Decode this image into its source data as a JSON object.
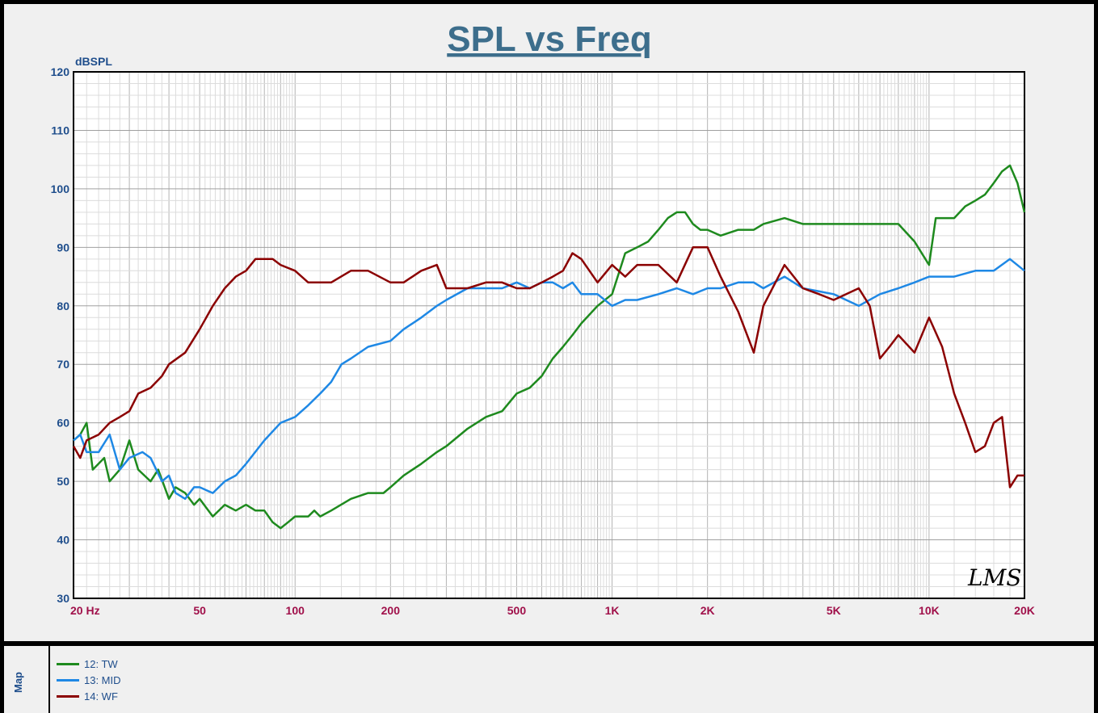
{
  "chart_data": {
    "type": "line",
    "title": "SPL vs Freq",
    "ylabel": "dBSPL",
    "xlabel": "",
    "x_scale": "log",
    "xlim": [
      20,
      20000
    ],
    "ylim": [
      30,
      120
    ],
    "y_ticks": [
      30,
      40,
      50,
      60,
      70,
      80,
      90,
      100,
      110,
      120
    ],
    "x_tick_labels": [
      {
        "f": 20,
        "label": "20  Hz"
      },
      {
        "f": 50,
        "label": "50"
      },
      {
        "f": 100,
        "label": "100"
      },
      {
        "f": 200,
        "label": "200"
      },
      {
        "f": 500,
        "label": "500"
      },
      {
        "f": 1000,
        "label": "1K"
      },
      {
        "f": 2000,
        "label": "2K"
      },
      {
        "f": 5000,
        "label": "5K"
      },
      {
        "f": 10000,
        "label": "10K"
      },
      {
        "f": 20000,
        "label": "20K"
      }
    ],
    "watermark": "LMS",
    "grid": true,
    "series": [
      {
        "name": "12: TW",
        "color": "#1e8a1e",
        "points": [
          [
            20,
            57
          ],
          [
            21,
            58
          ],
          [
            22,
            60
          ],
          [
            23,
            52
          ],
          [
            25,
            54
          ],
          [
            26,
            50
          ],
          [
            28,
            52
          ],
          [
            30,
            57
          ],
          [
            32,
            52
          ],
          [
            35,
            50
          ],
          [
            37,
            52
          ],
          [
            40,
            47
          ],
          [
            42,
            49
          ],
          [
            45,
            48
          ],
          [
            48,
            46
          ],
          [
            50,
            47
          ],
          [
            55,
            44
          ],
          [
            60,
            46
          ],
          [
            65,
            45
          ],
          [
            70,
            46
          ],
          [
            75,
            45
          ],
          [
            80,
            45
          ],
          [
            85,
            43
          ],
          [
            90,
            42
          ],
          [
            95,
            43
          ],
          [
            100,
            44
          ],
          [
            110,
            44
          ],
          [
            115,
            45
          ],
          [
            120,
            44
          ],
          [
            130,
            45
          ],
          [
            150,
            47
          ],
          [
            170,
            48
          ],
          [
            190,
            48
          ],
          [
            200,
            49
          ],
          [
            220,
            51
          ],
          [
            250,
            53
          ],
          [
            280,
            55
          ],
          [
            300,
            56
          ],
          [
            350,
            59
          ],
          [
            400,
            61
          ],
          [
            450,
            62
          ],
          [
            500,
            65
          ],
          [
            550,
            66
          ],
          [
            600,
            68
          ],
          [
            650,
            71
          ],
          [
            700,
            73
          ],
          [
            750,
            75
          ],
          [
            800,
            77
          ],
          [
            900,
            80
          ],
          [
            1000,
            82
          ],
          [
            1100,
            89
          ],
          [
            1200,
            90
          ],
          [
            1300,
            91
          ],
          [
            1400,
            93
          ],
          [
            1500,
            95
          ],
          [
            1600,
            96
          ],
          [
            1700,
            96
          ],
          [
            1800,
            94
          ],
          [
            1900,
            93
          ],
          [
            2000,
            93
          ],
          [
            2200,
            92
          ],
          [
            2500,
            93
          ],
          [
            2800,
            93
          ],
          [
            3000,
            94
          ],
          [
            3500,
            95
          ],
          [
            4000,
            94
          ],
          [
            4500,
            94
          ],
          [
            5000,
            94
          ],
          [
            6000,
            94
          ],
          [
            7000,
            94
          ],
          [
            8000,
            94
          ],
          [
            9000,
            91
          ],
          [
            10000,
            87
          ],
          [
            10500,
            95
          ],
          [
            12000,
            95
          ],
          [
            13000,
            97
          ],
          [
            14000,
            98
          ],
          [
            15000,
            99
          ],
          [
            16000,
            101
          ],
          [
            17000,
            103
          ],
          [
            18000,
            104
          ],
          [
            19000,
            101
          ],
          [
            20000,
            96
          ]
        ]
      },
      {
        "name": "13: MID",
        "color": "#1e88e5",
        "points": [
          [
            20,
            57
          ],
          [
            21,
            58
          ],
          [
            22,
            55
          ],
          [
            24,
            55
          ],
          [
            26,
            58
          ],
          [
            28,
            52
          ],
          [
            30,
            54
          ],
          [
            33,
            55
          ],
          [
            35,
            54
          ],
          [
            38,
            50
          ],
          [
            40,
            51
          ],
          [
            42,
            48
          ],
          [
            45,
            47
          ],
          [
            48,
            49
          ],
          [
            50,
            49
          ],
          [
            55,
            48
          ],
          [
            60,
            50
          ],
          [
            65,
            51
          ],
          [
            70,
            53
          ],
          [
            80,
            57
          ],
          [
            90,
            60
          ],
          [
            100,
            61
          ],
          [
            110,
            63
          ],
          [
            120,
            65
          ],
          [
            130,
            67
          ],
          [
            140,
            70
          ],
          [
            150,
            71
          ],
          [
            170,
            73
          ],
          [
            200,
            74
          ],
          [
            220,
            76
          ],
          [
            250,
            78
          ],
          [
            280,
            80
          ],
          [
            300,
            81
          ],
          [
            350,
            83
          ],
          [
            400,
            83
          ],
          [
            450,
            83
          ],
          [
            500,
            84
          ],
          [
            550,
            83
          ],
          [
            600,
            84
          ],
          [
            650,
            84
          ],
          [
            700,
            83
          ],
          [
            750,
            84
          ],
          [
            800,
            82
          ],
          [
            900,
            82
          ],
          [
            1000,
            80
          ],
          [
            1100,
            81
          ],
          [
            1200,
            81
          ],
          [
            1400,
            82
          ],
          [
            1600,
            83
          ],
          [
            1800,
            82
          ],
          [
            2000,
            83
          ],
          [
            2200,
            83
          ],
          [
            2500,
            84
          ],
          [
            2800,
            84
          ],
          [
            3000,
            83
          ],
          [
            3500,
            85
          ],
          [
            4000,
            83
          ],
          [
            5000,
            82
          ],
          [
            6000,
            80
          ],
          [
            7000,
            82
          ],
          [
            8000,
            83
          ],
          [
            9000,
            84
          ],
          [
            10000,
            85
          ],
          [
            12000,
            85
          ],
          [
            14000,
            86
          ],
          [
            16000,
            86
          ],
          [
            18000,
            88
          ],
          [
            20000,
            86
          ]
        ]
      },
      {
        "name": "14: WF",
        "color": "#8b0000",
        "points": [
          [
            20,
            56
          ],
          [
            21,
            54
          ],
          [
            22,
            57
          ],
          [
            24,
            58
          ],
          [
            26,
            60
          ],
          [
            28,
            61
          ],
          [
            30,
            62
          ],
          [
            32,
            65
          ],
          [
            35,
            66
          ],
          [
            38,
            68
          ],
          [
            40,
            70
          ],
          [
            45,
            72
          ],
          [
            50,
            76
          ],
          [
            55,
            80
          ],
          [
            60,
            83
          ],
          [
            65,
            85
          ],
          [
            70,
            86
          ],
          [
            75,
            88
          ],
          [
            80,
            88
          ],
          [
            85,
            88
          ],
          [
            90,
            87
          ],
          [
            100,
            86
          ],
          [
            110,
            84
          ],
          [
            120,
            84
          ],
          [
            130,
            84
          ],
          [
            150,
            86
          ],
          [
            170,
            86
          ],
          [
            200,
            84
          ],
          [
            220,
            84
          ],
          [
            250,
            86
          ],
          [
            280,
            87
          ],
          [
            300,
            83
          ],
          [
            350,
            83
          ],
          [
            400,
            84
          ],
          [
            450,
            84
          ],
          [
            500,
            83
          ],
          [
            550,
            83
          ],
          [
            600,
            84
          ],
          [
            650,
            85
          ],
          [
            700,
            86
          ],
          [
            750,
            89
          ],
          [
            800,
            88
          ],
          [
            900,
            84
          ],
          [
            1000,
            87
          ],
          [
            1100,
            85
          ],
          [
            1200,
            87
          ],
          [
            1400,
            87
          ],
          [
            1600,
            84
          ],
          [
            1800,
            90
          ],
          [
            2000,
            90
          ],
          [
            2200,
            85
          ],
          [
            2500,
            79
          ],
          [
            2800,
            72
          ],
          [
            3000,
            80
          ],
          [
            3500,
            87
          ],
          [
            4000,
            83
          ],
          [
            4500,
            82
          ],
          [
            5000,
            81
          ],
          [
            6000,
            83
          ],
          [
            6500,
            80
          ],
          [
            7000,
            71
          ],
          [
            7500,
            73
          ],
          [
            8000,
            75
          ],
          [
            9000,
            72
          ],
          [
            10000,
            78
          ],
          [
            11000,
            73
          ],
          [
            12000,
            65
          ],
          [
            13000,
            60
          ],
          [
            14000,
            55
          ],
          [
            15000,
            56
          ],
          [
            16000,
            60
          ],
          [
            17000,
            61
          ],
          [
            18000,
            49
          ],
          [
            19000,
            51
          ],
          [
            20000,
            51
          ]
        ]
      }
    ]
  },
  "legend": {
    "map_label": "Map",
    "items": [
      {
        "label": "12: TW",
        "color": "#1e8a1e"
      },
      {
        "label": "13: MID",
        "color": "#1e88e5"
      },
      {
        "label": "14: WF",
        "color": "#8b0000"
      }
    ]
  }
}
